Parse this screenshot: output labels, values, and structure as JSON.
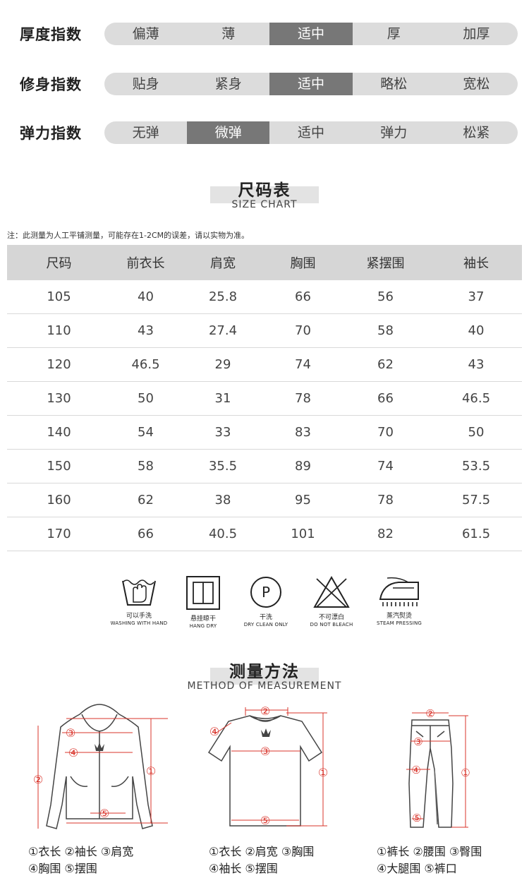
{
  "indices": [
    {
      "label": "厚度指数",
      "options": [
        "偏薄",
        "薄",
        "适中",
        "厚",
        "加厚"
      ],
      "selected": 2
    },
    {
      "label": "修身指数",
      "options": [
        "贴身",
        "紧身",
        "适中",
        "略松",
        "宽松"
      ],
      "selected": 2
    },
    {
      "label": "弹力指数",
      "options": [
        "无弹",
        "微弹",
        "适中",
        "弹力",
        "松紧"
      ],
      "selected": 1
    }
  ],
  "size_chart": {
    "title_cn": "尺码表",
    "title_en": "SIZE CHART",
    "note": "注：此测量为人工平铺测量，可能存在1-2CM的误差，请以实物为准。",
    "headers": [
      "尺码",
      "前衣长",
      "肩宽",
      "胸围",
      "紧摆围",
      "袖长"
    ],
    "rows": [
      [
        "105",
        "40",
        "25.8",
        "66",
        "56",
        "37"
      ],
      [
        "110",
        "43",
        "27.4",
        "70",
        "58",
        "40"
      ],
      [
        "120",
        "46.5",
        "29",
        "74",
        "62",
        "43"
      ],
      [
        "130",
        "50",
        "31",
        "78",
        "66",
        "46.5"
      ],
      [
        "140",
        "54",
        "33",
        "83",
        "70",
        "50"
      ],
      [
        "150",
        "58",
        "35.5",
        "89",
        "74",
        "53.5"
      ],
      [
        "160",
        "62",
        "38",
        "95",
        "78",
        "57.5"
      ],
      [
        "170",
        "66",
        "40.5",
        "101",
        "82",
        "61.5"
      ]
    ]
  },
  "care": [
    {
      "icon": "hand-wash-icon",
      "cn": "可以手洗",
      "en": "WASHING WITH HAND"
    },
    {
      "icon": "hang-dry-icon",
      "cn": "悬挂晾干",
      "en": "HANG DRY"
    },
    {
      "icon": "dry-clean-icon",
      "cn": "干洗",
      "en": "DRY CLEAN ONLY",
      "letter": "P"
    },
    {
      "icon": "no-bleach-icon",
      "cn": "不可漂白",
      "en": "DO NOT BLEACH"
    },
    {
      "icon": "steam-iron-icon",
      "cn": "蒸汽熨烫",
      "en": "STEAM PRESSING"
    }
  ],
  "measurement": {
    "title_cn": "测量方法",
    "title_en": "METHOD OF MEASUREMENT",
    "markers": [
      "①",
      "②",
      "③",
      "④",
      "⑤"
    ],
    "garments": [
      {
        "icon": "hoodie-icon",
        "legend_line1": "①衣长 ②袖长 ③肩宽",
        "legend_line2": "④胸围 ⑤摆围"
      },
      {
        "icon": "tshirt-icon",
        "legend_line1": "①衣长 ②肩宽 ③胸围",
        "legend_line2": "④袖长 ⑤摆围"
      },
      {
        "icon": "pants-icon",
        "legend_line1": "①裤长 ②腰围 ③臀围",
        "legend_line2": "④大腿围 ⑤裤口"
      }
    ]
  },
  "colors": {
    "selected": "#777777",
    "bar": "#dcdcdc",
    "header": "#d6d6d6",
    "marker": "#d9342b"
  }
}
